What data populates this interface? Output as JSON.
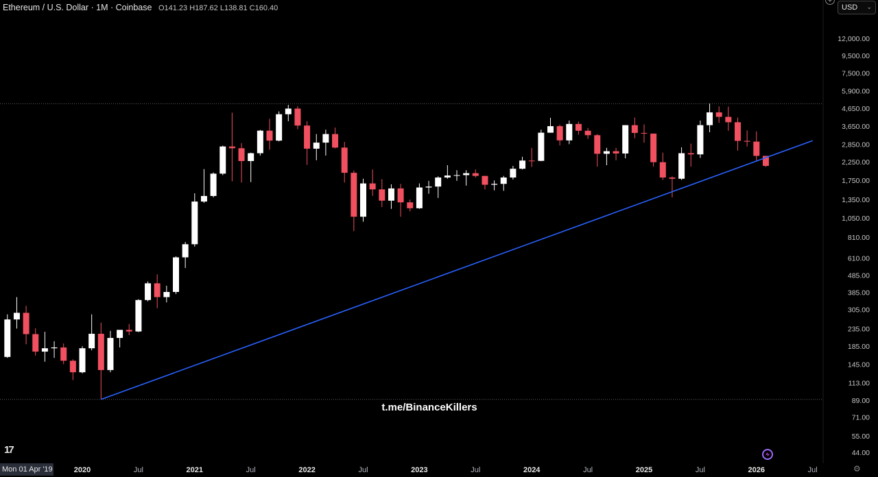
{
  "header": {
    "symbol_line": "Ethereum / U.S. Dollar · 1M · Coinbase",
    "ohlc": "O141.23 H187.62 L138.81 C160.40"
  },
  "currency_select": {
    "value": "USD"
  },
  "watermark": "t.me/BinanceKillers",
  "crosshair_date": "Mon 01 Apr '19",
  "colors": {
    "background": "#000000",
    "up_candle": "#ffffff",
    "down_candle": "#f0505f",
    "trendline": "#2962ff",
    "axis_text": "#c7c7c7"
  },
  "chart_data": {
    "type": "candlestick",
    "scale": "log",
    "ylim": [
      41,
      17000
    ],
    "y_ticks": [
      "12,000.00",
      "9,500.00",
      "7,500.00",
      "5,900.00",
      "4,650.00",
      "3,650.00",
      "2,850.00",
      "2,250.00",
      "1,750.00",
      "1,350.00",
      "1,050.00",
      "810.00",
      "610.00",
      "485.00",
      "385.00",
      "305.00",
      "235.00",
      "185.00",
      "145.00",
      "113.00",
      "89.00",
      "71.00",
      "55.00",
      "44.00"
    ],
    "x_ticks": [
      "2020",
      "Jul",
      "2021",
      "Jul",
      "2022",
      "Jul",
      "2023",
      "Jul",
      "2024",
      "Jul",
      "2025",
      "Jul",
      "2026",
      "Jul"
    ],
    "candles": [
      {
        "date": "2019-05",
        "o": 160,
        "h": 285,
        "l": 158,
        "c": 266
      },
      {
        "date": "2019-06",
        "o": 266,
        "h": 360,
        "l": 235,
        "c": 291
      },
      {
        "date": "2019-07",
        "o": 291,
        "h": 320,
        "l": 190,
        "c": 218
      },
      {
        "date": "2019-08",
        "o": 218,
        "h": 236,
        "l": 163,
        "c": 172
      },
      {
        "date": "2019-09",
        "o": 172,
        "h": 225,
        "l": 150,
        "c": 180
      },
      {
        "date": "2019-10",
        "o": 180,
        "h": 198,
        "l": 158,
        "c": 182
      },
      {
        "date": "2019-11",
        "o": 182,
        "h": 192,
        "l": 145,
        "c": 152
      },
      {
        "date": "2019-12",
        "o": 152,
        "h": 155,
        "l": 117,
        "c": 130
      },
      {
        "date": "2020-01",
        "o": 130,
        "h": 185,
        "l": 128,
        "c": 180
      },
      {
        "date": "2020-02",
        "o": 180,
        "h": 285,
        "l": 175,
        "c": 219
      },
      {
        "date": "2020-03",
        "o": 219,
        "h": 255,
        "l": 90,
        "c": 134
      },
      {
        "date": "2020-04",
        "o": 134,
        "h": 228,
        "l": 130,
        "c": 207
      },
      {
        "date": "2020-05",
        "o": 207,
        "h": 230,
        "l": 182,
        "c": 231
      },
      {
        "date": "2020-06",
        "o": 231,
        "h": 250,
        "l": 215,
        "c": 226
      },
      {
        "date": "2020-07",
        "o": 226,
        "h": 350,
        "l": 224,
        "c": 346
      },
      {
        "date": "2020-08",
        "o": 346,
        "h": 445,
        "l": 340,
        "c": 434
      },
      {
        "date": "2020-09",
        "o": 434,
        "h": 490,
        "l": 310,
        "c": 360
      },
      {
        "date": "2020-10",
        "o": 360,
        "h": 420,
        "l": 335,
        "c": 386
      },
      {
        "date": "2020-11",
        "o": 386,
        "h": 625,
        "l": 375,
        "c": 617
      },
      {
        "date": "2020-12",
        "o": 617,
        "h": 760,
        "l": 534,
        "c": 737
      },
      {
        "date": "2021-01",
        "o": 737,
        "h": 1470,
        "l": 714,
        "c": 1314
      },
      {
        "date": "2021-02",
        "o": 1314,
        "h": 2040,
        "l": 1290,
        "c": 1417
      },
      {
        "date": "2021-03",
        "o": 1417,
        "h": 1950,
        "l": 1390,
        "c": 1918
      },
      {
        "date": "2021-04",
        "o": 1918,
        "h": 2800,
        "l": 1880,
        "c": 2772
      },
      {
        "date": "2021-05",
        "o": 2772,
        "h": 4380,
        "l": 1730,
        "c": 2706
      },
      {
        "date": "2021-06",
        "o": 2706,
        "h": 2900,
        "l": 1700,
        "c": 2275
      },
      {
        "date": "2021-07",
        "o": 2275,
        "h": 2550,
        "l": 1710,
        "c": 2530
      },
      {
        "date": "2021-08",
        "o": 2530,
        "h": 3470,
        "l": 2450,
        "c": 3434
      },
      {
        "date": "2021-09",
        "o": 3434,
        "h": 4030,
        "l": 2650,
        "c": 3000
      },
      {
        "date": "2021-10",
        "o": 3000,
        "h": 4460,
        "l": 2970,
        "c": 4290
      },
      {
        "date": "2021-11",
        "o": 4290,
        "h": 4870,
        "l": 3900,
        "c": 4630
      },
      {
        "date": "2021-12",
        "o": 4630,
        "h": 4780,
        "l": 3500,
        "c": 3680
      },
      {
        "date": "2022-01",
        "o": 3680,
        "h": 3900,
        "l": 2160,
        "c": 2690
      },
      {
        "date": "2022-02",
        "o": 2690,
        "h": 3280,
        "l": 2300,
        "c": 2920
      },
      {
        "date": "2022-03",
        "o": 2920,
        "h": 3480,
        "l": 2450,
        "c": 3280
      },
      {
        "date": "2022-04",
        "o": 3280,
        "h": 3580,
        "l": 2700,
        "c": 2730
      },
      {
        "date": "2022-05",
        "o": 2730,
        "h": 2950,
        "l": 1700,
        "c": 1940
      },
      {
        "date": "2022-06",
        "o": 1940,
        "h": 2000,
        "l": 880,
        "c": 1070
      },
      {
        "date": "2022-07",
        "o": 1070,
        "h": 1790,
        "l": 1000,
        "c": 1680
      },
      {
        "date": "2022-08",
        "o": 1680,
        "h": 2030,
        "l": 1420,
        "c": 1550
      },
      {
        "date": "2022-09",
        "o": 1550,
        "h": 1780,
        "l": 1220,
        "c": 1330
      },
      {
        "date": "2022-10",
        "o": 1330,
        "h": 1660,
        "l": 1190,
        "c": 1570
      },
      {
        "date": "2022-11",
        "o": 1570,
        "h": 1670,
        "l": 1070,
        "c": 1300
      },
      {
        "date": "2022-12",
        "o": 1300,
        "h": 1350,
        "l": 1150,
        "c": 1200
      },
      {
        "date": "2023-01",
        "o": 1200,
        "h": 1680,
        "l": 1190,
        "c": 1590
      },
      {
        "date": "2023-02",
        "o": 1590,
        "h": 1740,
        "l": 1460,
        "c": 1610
      },
      {
        "date": "2023-03",
        "o": 1610,
        "h": 1850,
        "l": 1380,
        "c": 1820
      },
      {
        "date": "2023-04",
        "o": 1820,
        "h": 2150,
        "l": 1790,
        "c": 1870
      },
      {
        "date": "2023-05",
        "o": 1870,
        "h": 2010,
        "l": 1740,
        "c": 1880
      },
      {
        "date": "2023-06",
        "o": 1880,
        "h": 2010,
        "l": 1630,
        "c": 1930
      },
      {
        "date": "2023-07",
        "o": 1930,
        "h": 2030,
        "l": 1820,
        "c": 1860
      },
      {
        "date": "2023-08",
        "o": 1860,
        "h": 1860,
        "l": 1550,
        "c": 1650
      },
      {
        "date": "2023-09",
        "o": 1650,
        "h": 1750,
        "l": 1530,
        "c": 1670
      },
      {
        "date": "2023-10",
        "o": 1670,
        "h": 1860,
        "l": 1520,
        "c": 1820
      },
      {
        "date": "2023-11",
        "o": 1820,
        "h": 2130,
        "l": 1770,
        "c": 2050
      },
      {
        "date": "2023-12",
        "o": 2050,
        "h": 2410,
        "l": 2030,
        "c": 2290
      },
      {
        "date": "2024-01",
        "o": 2290,
        "h": 2720,
        "l": 2100,
        "c": 2280
      },
      {
        "date": "2024-02",
        "o": 2280,
        "h": 3480,
        "l": 2270,
        "c": 3340
      },
      {
        "date": "2024-03",
        "o": 3340,
        "h": 4090,
        "l": 3340,
        "c": 3650
      },
      {
        "date": "2024-04",
        "o": 3650,
        "h": 3730,
        "l": 2810,
        "c": 3010
      },
      {
        "date": "2024-05",
        "o": 3010,
        "h": 3940,
        "l": 2860,
        "c": 3760
      },
      {
        "date": "2024-06",
        "o": 3760,
        "h": 3880,
        "l": 3250,
        "c": 3430
      },
      {
        "date": "2024-07",
        "o": 3430,
        "h": 3560,
        "l": 3070,
        "c": 3230
      },
      {
        "date": "2024-08",
        "o": 3230,
        "h": 3280,
        "l": 2110,
        "c": 2510
      },
      {
        "date": "2024-09",
        "o": 2510,
        "h": 2720,
        "l": 2150,
        "c": 2600
      },
      {
        "date": "2024-10",
        "o": 2600,
        "h": 2720,
        "l": 2300,
        "c": 2520
      },
      {
        "date": "2024-11",
        "o": 2520,
        "h": 3700,
        "l": 2360,
        "c": 3700
      },
      {
        "date": "2024-12",
        "o": 3700,
        "h": 4100,
        "l": 3100,
        "c": 3330
      },
      {
        "date": "2025-01",
        "o": 3330,
        "h": 3740,
        "l": 2920,
        "c": 3300
      },
      {
        "date": "2025-02",
        "o": 3300,
        "h": 3300,
        "l": 2110,
        "c": 2240
      },
      {
        "date": "2025-03",
        "o": 2240,
        "h": 2550,
        "l": 1760,
        "c": 1820
      },
      {
        "date": "2025-04",
        "o": 1820,
        "h": 1850,
        "l": 1390,
        "c": 1790
      },
      {
        "date": "2025-05",
        "o": 1790,
        "h": 2740,
        "l": 1760,
        "c": 2530
      },
      {
        "date": "2025-06",
        "o": 2530,
        "h": 2880,
        "l": 2110,
        "c": 2490
      },
      {
        "date": "2025-07",
        "o": 2490,
        "h": 3940,
        "l": 2370,
        "c": 3700
      },
      {
        "date": "2025-08",
        "o": 3700,
        "h": 4950,
        "l": 3360,
        "c": 4400
      },
      {
        "date": "2025-09",
        "o": 4400,
        "h": 4770,
        "l": 3820,
        "c": 4140
      },
      {
        "date": "2025-10",
        "o": 4140,
        "h": 4760,
        "l": 3430,
        "c": 3850
      },
      {
        "date": "2025-11",
        "o": 3850,
        "h": 4100,
        "l": 2620,
        "c": 2990
      },
      {
        "date": "2025-12",
        "o": 2990,
        "h": 3450,
        "l": 2770,
        "c": 2960
      },
      {
        "date": "2026-01",
        "o": 2960,
        "h": 3400,
        "l": 2260,
        "c": 2440
      },
      {
        "date": "2026-02",
        "o": 2440,
        "h": 2440,
        "l": 2100,
        "c": 2130
      }
    ],
    "trendline": {
      "from": {
        "date": "2020-03",
        "price": 90
      },
      "to": {
        "date": "2026-07",
        "price": 3000
      }
    },
    "reference_lines": [
      {
        "price": 4950,
        "style": "dotted"
      },
      {
        "price": 90,
        "style": "dotted"
      }
    ]
  }
}
